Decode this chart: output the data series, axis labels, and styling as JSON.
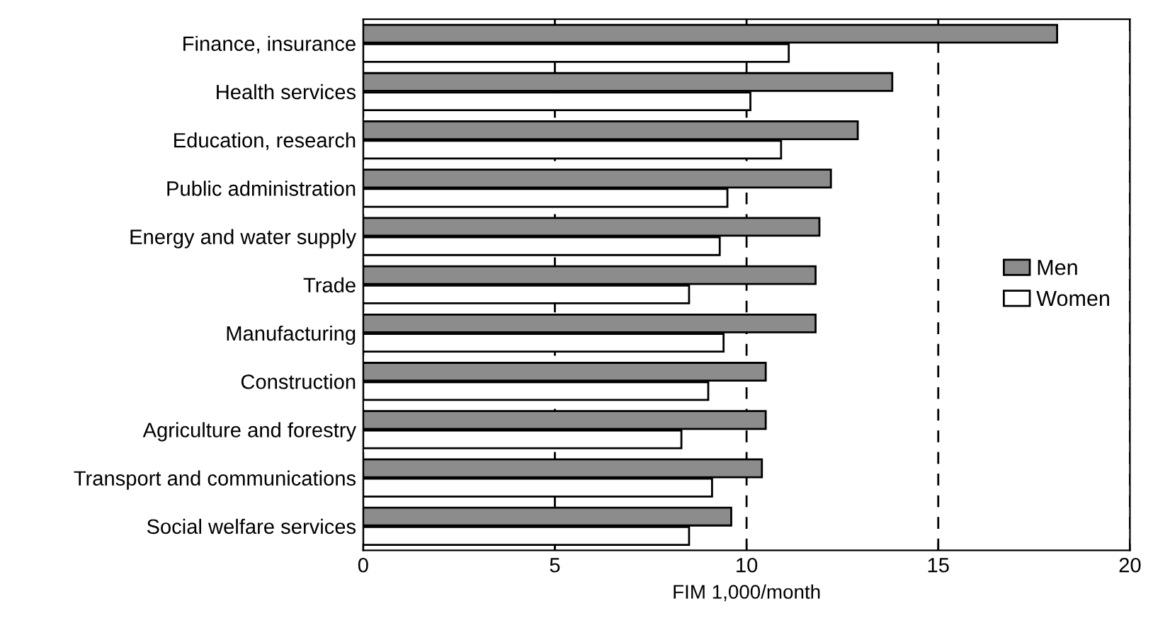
{
  "chart_data": {
    "type": "bar",
    "orientation": "horizontal",
    "xlabel": "FIM 1,000/month",
    "categories": [
      "Finance, insurance",
      "Health services",
      "Education, research",
      "Public administration",
      "Energy and water supply",
      "Trade",
      "Manufacturing",
      "Construction",
      "Agriculture and forestry",
      "Transport and communications",
      "Social welfare services"
    ],
    "series": [
      {
        "name": "Men",
        "color": "#8c8c8c",
        "values": [
          18.1,
          13.8,
          12.9,
          12.2,
          11.9,
          11.8,
          11.8,
          10.5,
          10.5,
          10.4,
          9.6
        ]
      },
      {
        "name": "Women",
        "color": "#ffffff",
        "values": [
          11.1,
          10.1,
          10.9,
          9.5,
          9.3,
          8.5,
          9.4,
          9.0,
          8.3,
          9.1,
          8.5
        ]
      }
    ],
    "xlim": [
      0,
      20
    ],
    "xticks": [
      0,
      5,
      10,
      15,
      20
    ],
    "grid": "x",
    "legend": "right"
  }
}
